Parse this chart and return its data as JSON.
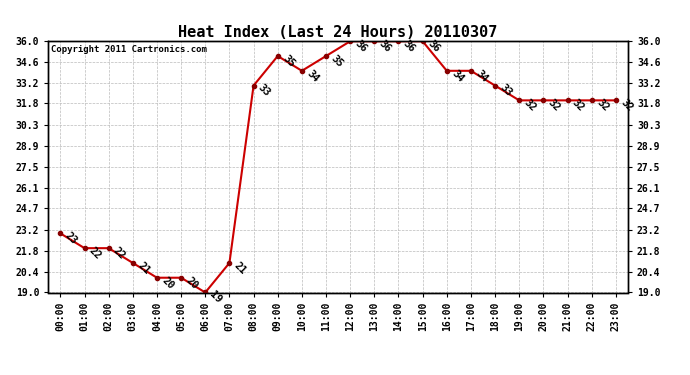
{
  "title": "Heat Index (Last 24 Hours) 20110307",
  "copyright": "Copyright 2011 Cartronics.com",
  "hours": [
    "00:00",
    "01:00",
    "02:00",
    "03:00",
    "04:00",
    "05:00",
    "06:00",
    "07:00",
    "08:00",
    "09:00",
    "10:00",
    "11:00",
    "12:00",
    "13:00",
    "14:00",
    "15:00",
    "16:00",
    "17:00",
    "18:00",
    "19:00",
    "20:00",
    "21:00",
    "22:00",
    "23:00"
  ],
  "values": [
    23,
    22,
    22,
    21,
    20,
    20,
    19,
    21,
    33,
    35,
    34,
    35,
    36,
    36,
    36,
    36,
    34,
    34,
    33,
    32,
    32,
    32,
    32,
    32
  ],
  "ylim": [
    19.0,
    36.0
  ],
  "yticks": [
    19.0,
    20.4,
    21.8,
    23.2,
    24.7,
    26.1,
    27.5,
    28.9,
    30.3,
    31.8,
    33.2,
    34.6,
    36.0
  ],
  "ytick_labels": [
    "19.0",
    "20.4",
    "21.8",
    "23.2",
    "24.7",
    "26.1",
    "27.5",
    "28.9",
    "30.3",
    "31.8",
    "33.2",
    "34.6",
    "36.0"
  ],
  "line_color": "#cc0000",
  "marker_color": "#880000",
  "bg_color": "white",
  "grid_color": "#bbbbbb",
  "title_fontsize": 11,
  "copyright_fontsize": 6.5,
  "tick_fontsize": 7,
  "annotation_fontsize": 7.5
}
